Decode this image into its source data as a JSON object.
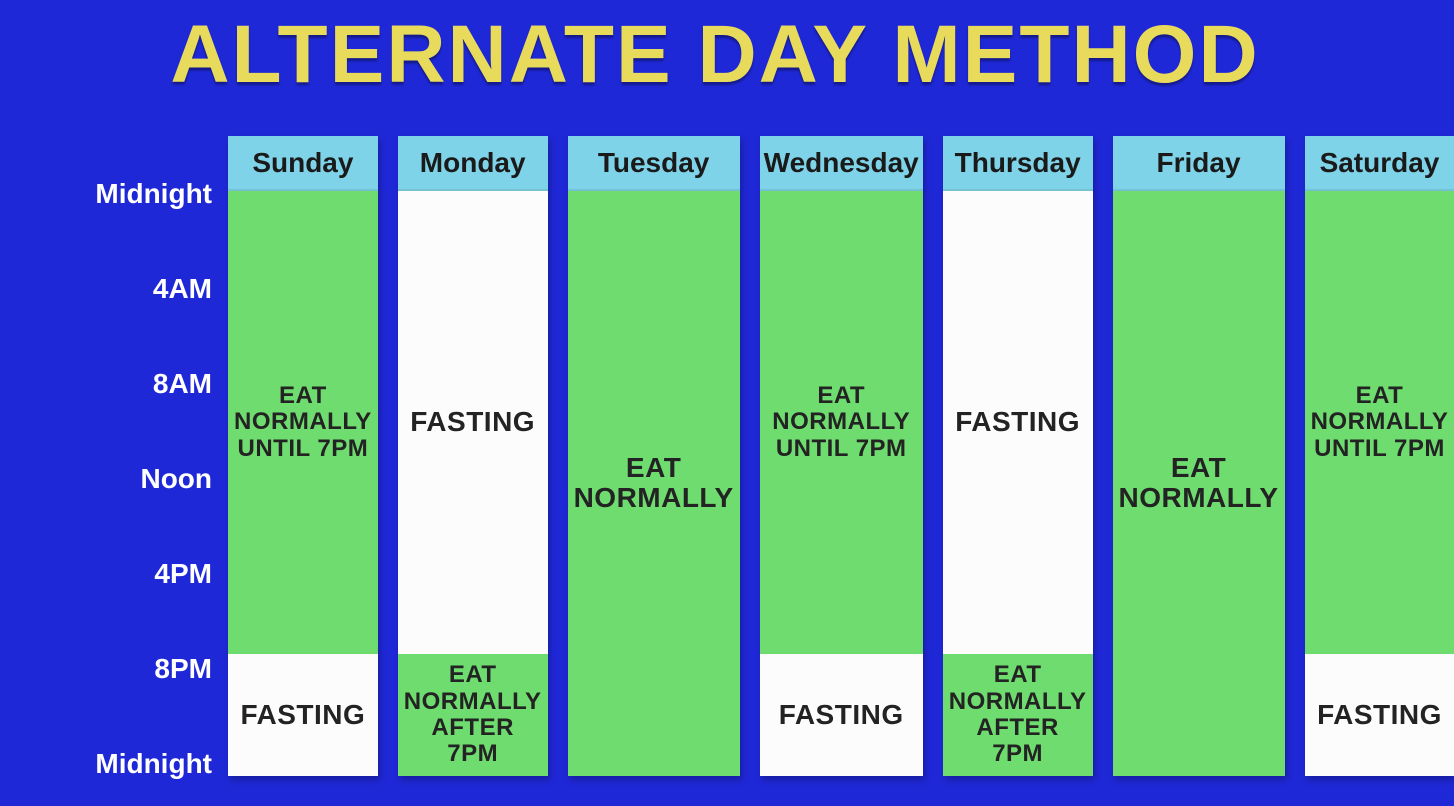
{
  "title": "ALTERNATE DAY METHOD",
  "colors": {
    "background": "#1f28d6",
    "title": "#e8da5a",
    "header_bg": "#7fd3e8",
    "eat_bg": "#6fdc6f",
    "fast_bg": "#fcfcfc",
    "text_dark": "#232323",
    "text_light": "#ffffff"
  },
  "layout": {
    "title_fontsize": 82,
    "header_fontsize": 28,
    "segment_fontsize": 24,
    "large_segment_fontsize": 28,
    "time_label_fontsize": 28,
    "column_gap": 20,
    "day_header_height_pct": 0,
    "total_hours": 24
  },
  "time_axis": {
    "labels": [
      {
        "text": "Midnight",
        "hour": 0
      },
      {
        "text": "4AM",
        "hour": 4
      },
      {
        "text": "8AM",
        "hour": 8
      },
      {
        "text": "Noon",
        "hour": 12
      },
      {
        "text": "4PM",
        "hour": 16
      },
      {
        "text": "8PM",
        "hour": 20
      },
      {
        "text": "Midnight",
        "hour": 24
      }
    ]
  },
  "days": [
    {
      "name": "Sunday",
      "segments": [
        {
          "type": "eat",
          "label": "EAT\nNORMALLY\nUNTIL 7PM",
          "from": 0,
          "to": 19
        },
        {
          "type": "fast",
          "label": "FASTING",
          "from": 19,
          "to": 24,
          "large": true
        }
      ]
    },
    {
      "name": "Monday",
      "segments": [
        {
          "type": "fast",
          "label": "FASTING",
          "from": 0,
          "to": 19,
          "large": true
        },
        {
          "type": "eat",
          "label": "EAT\nNORMALLY\nAFTER 7PM",
          "from": 19,
          "to": 24
        }
      ]
    },
    {
      "name": "Tuesday",
      "segments": [
        {
          "type": "eat",
          "label": "EAT\nNORMALLY",
          "from": 0,
          "to": 24,
          "large": true
        }
      ]
    },
    {
      "name": "Wednesday",
      "segments": [
        {
          "type": "eat",
          "label": "EAT\nNORMALLY\nUNTIL 7PM",
          "from": 0,
          "to": 19
        },
        {
          "type": "fast",
          "label": "FASTING",
          "from": 19,
          "to": 24,
          "large": true
        }
      ]
    },
    {
      "name": "Thursday",
      "segments": [
        {
          "type": "fast",
          "label": "FASTING",
          "from": 0,
          "to": 19,
          "large": true
        },
        {
          "type": "eat",
          "label": "EAT\nNORMALLY\nAFTER 7PM",
          "from": 19,
          "to": 24
        }
      ]
    },
    {
      "name": "Friday",
      "segments": [
        {
          "type": "eat",
          "label": "EAT\nNORMALLY",
          "from": 0,
          "to": 24,
          "large": true
        }
      ]
    },
    {
      "name": "Saturday",
      "segments": [
        {
          "type": "eat",
          "label": "EAT\nNORMALLY\nUNTIL 7PM",
          "from": 0,
          "to": 19
        },
        {
          "type": "fast",
          "label": "FASTING",
          "from": 19,
          "to": 24,
          "large": true
        }
      ]
    }
  ]
}
